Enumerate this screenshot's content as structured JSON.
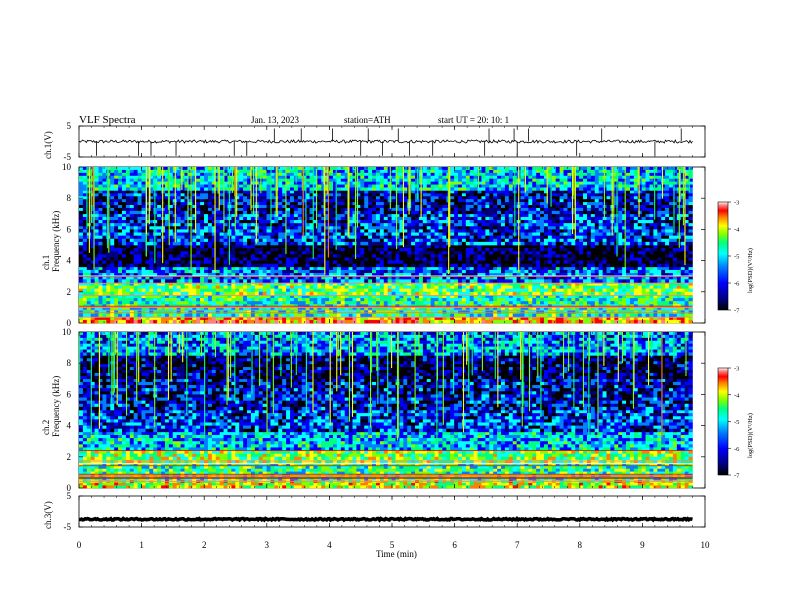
{
  "header": {
    "title": "VLF  Spectra",
    "date": "Jan. 13, 2023",
    "station": "station=ATH",
    "start": "start  UT  =   20: 10: 1"
  },
  "chart_data": {
    "type": "heatmap",
    "x_axis": {
      "label": "Time  (min)",
      "range": [
        0,
        10
      ],
      "ticks": [
        "0",
        "1",
        "2",
        "3",
        "4",
        "5",
        "6",
        "7",
        "8",
        "9",
        "10"
      ]
    },
    "panels": [
      {
        "id": "ch1-waveform",
        "type": "line",
        "ylabel": "ch.1(V)",
        "ylim": [
          -5,
          5
        ],
        "yticks": [
          "5",
          "-5"
        ],
        "x_data_range": [
          0,
          9.8
        ],
        "trace_level": 0,
        "noise_amplitude": 0.5,
        "spike_times": [
          0.28,
          0.95,
          1.15,
          1.55,
          2.48,
          2.68,
          3.12,
          3.55,
          4.05,
          4.5,
          4.62,
          4.85,
          5.1,
          5.28,
          5.65,
          6.48,
          6.55,
          6.95,
          7.0,
          7.18,
          7.95,
          8.35,
          9.2,
          9.62
        ]
      },
      {
        "id": "ch1-spectrogram",
        "type": "heatmap",
        "ylabel_channel": "ch.1",
        "ylabel": "Frequency  (kHz)",
        "ylim": [
          0,
          10
        ],
        "yticks": [
          "0",
          "2",
          "4",
          "6",
          "8",
          "10"
        ],
        "colorbar": {
          "label": "log(PSD)(V²/Hz)",
          "range": [
            -7,
            -3
          ],
          "ticks": [
            "-3",
            "-4",
            "-5",
            "-6",
            "-7"
          ]
        },
        "bands": [
          {
            "f_range": [
              0.0,
              0.4
            ],
            "level": -4.2
          },
          {
            "f_range": [
              0.4,
              1.8
            ],
            "level": -5.3
          },
          {
            "f_range": [
              1.8,
              2.6
            ],
            "level": -5.0
          },
          {
            "f_range": [
              2.6,
              3.6
            ],
            "level": -5.9
          },
          {
            "f_range": [
              3.6,
              5.0
            ],
            "level": -6.7
          },
          {
            "f_range": [
              5.0,
              7.0
            ],
            "level": -6.1
          },
          {
            "f_range": [
              7.0,
              8.5
            ],
            "level": -6.3
          },
          {
            "f_range": [
              8.5,
              10.0
            ],
            "level": -5.6
          }
        ]
      },
      {
        "id": "ch2-spectrogram",
        "type": "heatmap",
        "ylabel_channel": "ch.2",
        "ylabel": "Frequency  (kHz)",
        "ylim": [
          0,
          10
        ],
        "yticks": [
          "0",
          "2",
          "4",
          "6",
          "8",
          "10"
        ],
        "colorbar": {
          "label": "log(PSD)(V²/Hz)",
          "range": [
            -7,
            -3
          ],
          "ticks": [
            "-3",
            "-4",
            "-5",
            "-6",
            "-7"
          ]
        },
        "bands": [
          {
            "f_range": [
              0.0,
              0.5
            ],
            "level": -4.6
          },
          {
            "f_range": [
              0.5,
              1.6
            ],
            "level": -5.2
          },
          {
            "f_range": [
              1.6,
              2.4
            ],
            "level": -4.9
          },
          {
            "f_range": [
              2.4,
              3.6
            ],
            "level": -5.6
          },
          {
            "f_range": [
              3.6,
              5.0
            ],
            "level": -6.1
          },
          {
            "f_range": [
              5.0,
              7.0
            ],
            "level": -6.3
          },
          {
            "f_range": [
              7.0,
              8.5
            ],
            "level": -6.6
          },
          {
            "f_range": [
              8.5,
              10.0
            ],
            "level": -5.8
          }
        ]
      },
      {
        "id": "ch3-waveform",
        "type": "line",
        "ylabel": "ch.3(V)",
        "ylim": [
          -5,
          5
        ],
        "yticks": [
          "5",
          "-5"
        ],
        "x_data_range": [
          0,
          9.8
        ],
        "trace_level": -2.5,
        "noise_amplitude": 0.25,
        "spike_times": []
      }
    ]
  },
  "colors": {
    "colormap": [
      "#000000",
      "#00007f",
      "#0000ff",
      "#0080ff",
      "#00ffff",
      "#00ff80",
      "#80ff00",
      "#ffff00",
      "#ff8000",
      "#ff0000",
      "#ff8080",
      "#ffffff"
    ],
    "trace": "#000000",
    "axes": "#000000"
  }
}
